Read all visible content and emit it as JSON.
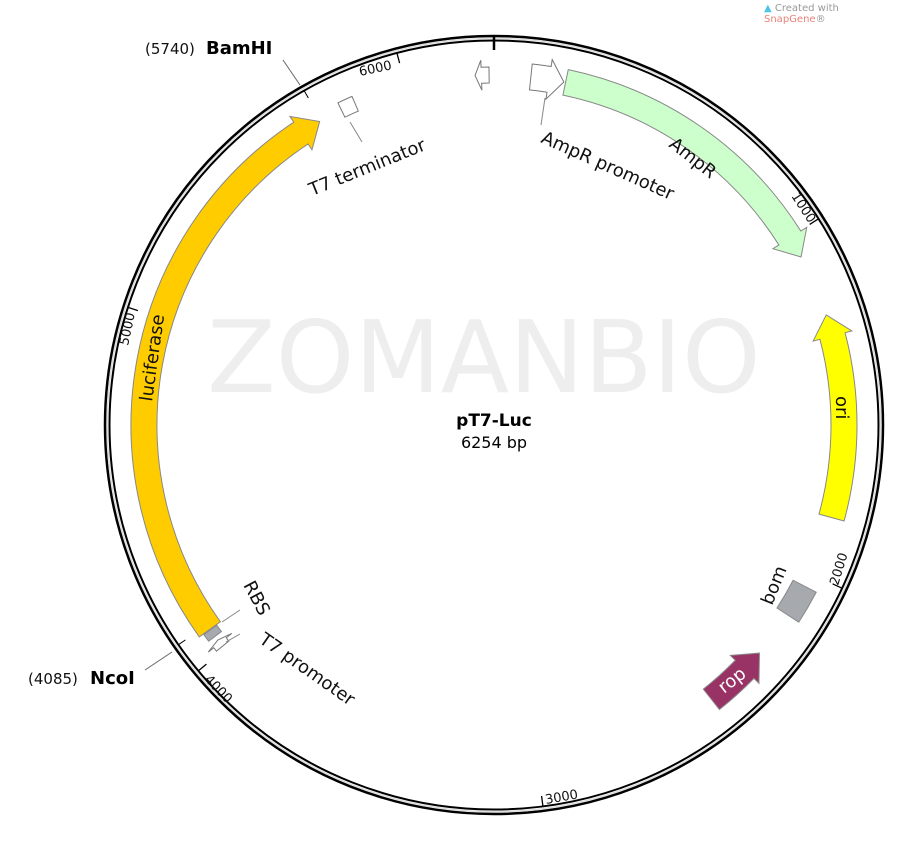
{
  "credit": {
    "prefix": "Created with ",
    "brand": "SnapGene",
    "suffix": "®",
    "icon": "snapgene-logo-icon"
  },
  "watermark": "ZOMANBIO",
  "plasmid": {
    "name": "pT7-Luc",
    "size_label": "6254 bp",
    "length_bp": 6254
  },
  "ticks": [
    {
      "bp": 1000,
      "label": "1000"
    },
    {
      "bp": 2000,
      "label": "2000"
    },
    {
      "bp": 3000,
      "label": "3000"
    },
    {
      "bp": 4000,
      "label": "4000"
    },
    {
      "bp": 5000,
      "label": "5000"
    },
    {
      "bp": 6000,
      "label": "6000"
    }
  ],
  "sites": [
    {
      "name": "BamHI",
      "position": "(5740)",
      "bp": 5740
    },
    {
      "name": "NcoI",
      "position": "(4085)",
      "bp": 4085
    }
  ],
  "features": [
    {
      "id": "ampr-promoter",
      "label": "AmpR promoter",
      "start": 105,
      "end": 200,
      "direction": "forward",
      "color": "#ffffff"
    },
    {
      "id": "ampr",
      "label": "AmpR",
      "start": 205,
      "end": 1065,
      "direction": "forward",
      "color": "#ccffcc"
    },
    {
      "id": "ori",
      "label": "ori",
      "start": 1245,
      "end": 1830,
      "direction": "reverse",
      "color": "#ffff00"
    },
    {
      "id": "bom",
      "label": "bom",
      "start": 2040,
      "end": 2135,
      "direction": "none",
      "color": "#a6a9ad"
    },
    {
      "id": "rop",
      "label": "rop",
      "start": 2270,
      "end": 2460,
      "direction": "reverse",
      "color": "#993366"
    },
    {
      "id": "t7-promoter",
      "label": "T7 promoter",
      "start": 4010,
      "end": 4032,
      "direction": "forward",
      "color": "#ffffff"
    },
    {
      "id": "rbs",
      "label": "RBS",
      "start": 4045,
      "end": 4068,
      "direction": "none",
      "color": "#a6a9ad"
    },
    {
      "id": "luciferase",
      "label": "luciferase",
      "start": 4070,
      "end": 5735,
      "direction": "forward",
      "color": "#ffcc00"
    },
    {
      "id": "t7-terminator",
      "label": "T7 terminator",
      "start": 5805,
      "end": 5848,
      "direction": "none",
      "color": "#ffffff"
    },
    {
      "id": "small-feature",
      "label": "",
      "start": 6200,
      "end": 6240,
      "direction": "reverse",
      "color": "#ffffff"
    }
  ]
}
